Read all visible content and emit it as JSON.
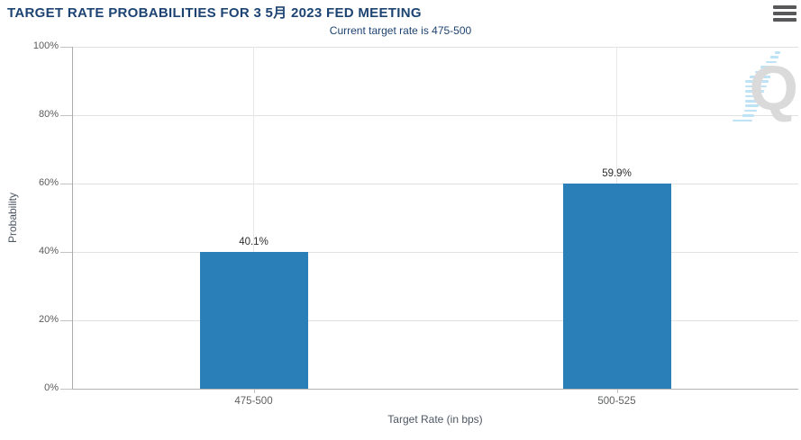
{
  "header": {
    "title": "TARGET RATE PROBABILITIES FOR 3 5月 2023 FED MEETING"
  },
  "chart_data": {
    "type": "bar",
    "title": "TARGET RATE PROBABILITIES FOR 3 5月 2023 FED MEETING",
    "subtitle": "Current target rate is 475-500",
    "categories": [
      "475-500",
      "500-525"
    ],
    "values": [
      40.1,
      59.9
    ],
    "data_labels": [
      "40.1%",
      "59.9%"
    ],
    "xlabel": "Target Rate (in bps)",
    "ylabel": "Probability",
    "ylim": [
      0,
      100
    ],
    "ytick_labels": [
      "0%",
      "20%",
      "40%",
      "60%",
      "80%",
      "100%"
    ],
    "grid": true,
    "legend": "none",
    "bar_color": "#2b7fb8"
  },
  "watermark": {
    "letter": "Q"
  },
  "colors": {
    "title_text": "#1d4372",
    "subtitle_text": "#1d4372",
    "bar": "#2b7fb8",
    "gridline": "#e1e1e1",
    "axis_line": "#ababab",
    "tick_label": "#5a5a5a",
    "axis_title": "#4d5663",
    "data_label": "#2e2e2e",
    "menu_icon": "#58585a",
    "watermark_q": "#dadada",
    "watermark_dash": "#bfe3f6"
  }
}
